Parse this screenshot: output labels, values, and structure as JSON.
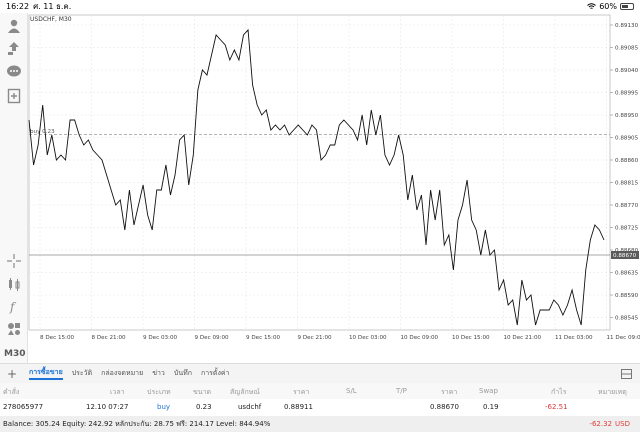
{
  "status": {
    "time": "16:22",
    "date": "ศ. 11 ธ.ค.",
    "battery": "60%",
    "battery_fraction": 0.6
  },
  "chart": {
    "symbol": "USDCHF, M30",
    "buy_label": "buy 0.23",
    "price_line": "0.88670",
    "timeframe_label": "M30"
  },
  "chart_data": {
    "type": "line",
    "title": "USDCHF, M30",
    "x_ticks": [
      "8 Dec 15:00",
      "8 Dec 21:00",
      "9 Dec 03:00",
      "9 Dec 09:00",
      "9 Dec 15:00",
      "9 Dec 21:00",
      "10 Dec 03:00",
      "10 Dec 09:00",
      "10 Dec 15:00",
      "10 Dec 21:00",
      "11 Dec 03:00",
      "11 Dec 09:00"
    ],
    "y_ticks": [
      0.8913,
      0.89085,
      0.8904,
      0.88995,
      0.8895,
      0.88905,
      0.8886,
      0.88815,
      0.8877,
      0.88725,
      0.8868,
      0.88635,
      0.8859,
      0.88545
    ],
    "ylim": [
      0.8852,
      0.8915
    ],
    "buy_price": 0.88911,
    "current_price": 0.8867,
    "values": [
      0.8894,
      0.8885,
      0.8889,
      0.8897,
      0.8887,
      0.8891,
      0.8886,
      0.8887,
      0.8886,
      0.8894,
      0.8894,
      0.8891,
      0.8889,
      0.889,
      0.8888,
      0.8887,
      0.8886,
      0.8883,
      0.888,
      0.8877,
      0.8878,
      0.8872,
      0.888,
      0.8873,
      0.8877,
      0.8881,
      0.8875,
      0.8872,
      0.888,
      0.888,
      0.8885,
      0.8879,
      0.8883,
      0.889,
      0.8891,
      0.8881,
      0.8887,
      0.89,
      0.8904,
      0.8903,
      0.8907,
      0.8911,
      0.891,
      0.8909,
      0.8906,
      0.8908,
      0.8906,
      0.8911,
      0.8912,
      0.8901,
      0.8897,
      0.8895,
      0.8896,
      0.8892,
      0.8893,
      0.8892,
      0.8893,
      0.8891,
      0.8892,
      0.8893,
      0.8892,
      0.8891,
      0.8893,
      0.8892,
      0.8886,
      0.8887,
      0.8889,
      0.8889,
      0.8893,
      0.8894,
      0.8893,
      0.8892,
      0.889,
      0.8895,
      0.8889,
      0.8896,
      0.8891,
      0.8895,
      0.8887,
      0.8885,
      0.8887,
      0.8891,
      0.8887,
      0.8878,
      0.8883,
      0.8876,
      0.8879,
      0.8869,
      0.888,
      0.8874,
      0.888,
      0.8869,
      0.8871,
      0.8864,
      0.8874,
      0.8877,
      0.8882,
      0.8874,
      0.8872,
      0.8867,
      0.8872,
      0.8867,
      0.8868,
      0.886,
      0.8862,
      0.8857,
      0.8858,
      0.8853,
      0.8862,
      0.8858,
      0.8859,
      0.8853,
      0.8856,
      0.8856,
      0.8856,
      0.8858,
      0.8857,
      0.8855,
      0.8857,
      0.886,
      0.8856,
      0.8853,
      0.8864,
      0.887,
      0.8873,
      0.8872,
      0.887
    ],
    "grid": true
  },
  "tabs": [
    "การซื้อขาย",
    "ประวัติ",
    "กล่องจดหมาย",
    "ข่าว",
    "บันทึก",
    "การตั้งค่า"
  ],
  "table": {
    "headers": [
      "คำสั่ง",
      "เวลา",
      "ประเภท",
      "ขนาด",
      "สัญลักษณ์",
      "ราคา",
      "S/L",
      "T/P",
      "ราคา",
      "Swap",
      "กำไร",
      "หมายเหตุ"
    ],
    "row": {
      "order": "278065977",
      "time": "12.10 07:27",
      "type": "buy",
      "size": "0.23",
      "symbol": "usdchf",
      "price": "0.88911",
      "sl": "",
      "tp": "",
      "cur_price": "0.88670",
      "swap": "0.19",
      "profit": "-62.51"
    }
  },
  "balance": {
    "text": "Balance: 305.24 Equity: 242.92 หลักประกัน: 28.75 ฟรี: 214.17 Level: 844.94%",
    "total": "-62.32",
    "currency": "USD"
  },
  "colors": {
    "accent": "#1e73d8",
    "loss": "#e03b3b",
    "line": "#111111",
    "grid": "#e6e6e6"
  }
}
